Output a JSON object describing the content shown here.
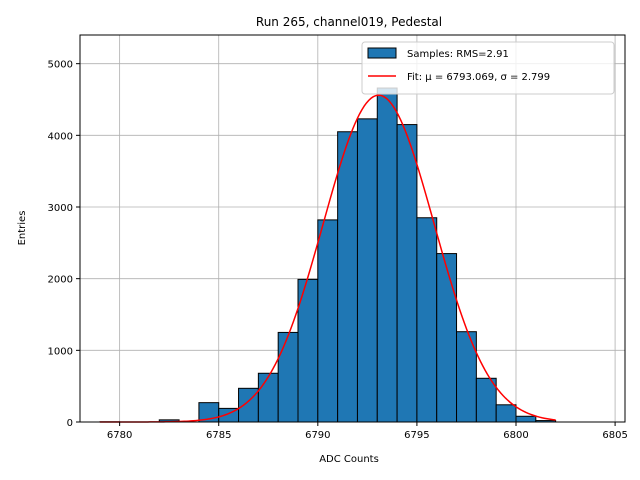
{
  "chart_data": {
    "type": "bar",
    "title": "Run 265, channel019, Pedestal",
    "xlabel": "ADC Counts",
    "ylabel": "Entries",
    "xlim": [
      6778,
      6805.5
    ],
    "ylim": [
      0,
      5400
    ],
    "xticks": [
      6780,
      6785,
      6790,
      6795,
      6800,
      6805
    ],
    "yticks": [
      0,
      1000,
      2000,
      3000,
      4000,
      5000
    ],
    "grid": true,
    "legend_placement": "top-right",
    "bar_color": "#1f77b4",
    "fit_color": "#ff0000",
    "histogram": {
      "name": "Samples: RMS=2.91",
      "bins": [
        {
          "x0": 6779,
          "x1": 6780,
          "count": 2
        },
        {
          "x0": 6780,
          "x1": 6781,
          "count": 0
        },
        {
          "x0": 6781,
          "x1": 6782,
          "count": 0
        },
        {
          "x0": 6782,
          "x1": 6783,
          "count": 30
        },
        {
          "x0": 6783,
          "x1": 6784,
          "count": 0
        },
        {
          "x0": 6784,
          "x1": 6785,
          "count": 270
        },
        {
          "x0": 6785,
          "x1": 6786,
          "count": 190
        },
        {
          "x0": 6786,
          "x1": 6787,
          "count": 470
        },
        {
          "x0": 6787,
          "x1": 6788,
          "count": 680
        },
        {
          "x0": 6788,
          "x1": 6789,
          "count": 1250
        },
        {
          "x0": 6789,
          "x1": 6790,
          "count": 1990
        },
        {
          "x0": 6790,
          "x1": 6791,
          "count": 2820
        },
        {
          "x0": 6791,
          "x1": 6792,
          "count": 4050
        },
        {
          "x0": 6792,
          "x1": 6793,
          "count": 4230
        },
        {
          "x0": 6793,
          "x1": 6794,
          "count": 4660
        },
        {
          "x0": 6794,
          "x1": 6795,
          "count": 4150
        },
        {
          "x0": 6795,
          "x1": 6796,
          "count": 2850
        },
        {
          "x0": 6796,
          "x1": 6797,
          "count": 2350
        },
        {
          "x0": 6797,
          "x1": 6798,
          "count": 1260
        },
        {
          "x0": 6798,
          "x1": 6799,
          "count": 610
        },
        {
          "x0": 6799,
          "x1": 6800,
          "count": 240
        },
        {
          "x0": 6800,
          "x1": 6801,
          "count": 80
        },
        {
          "x0": 6801,
          "x1": 6802,
          "count": 20
        }
      ]
    },
    "fit": {
      "name": "Fit: μ = 6793.069, σ = 2.799",
      "mu": 6793.069,
      "sigma": 2.799,
      "amplitude": 4560,
      "x_range": [
        6779,
        6802
      ]
    }
  }
}
